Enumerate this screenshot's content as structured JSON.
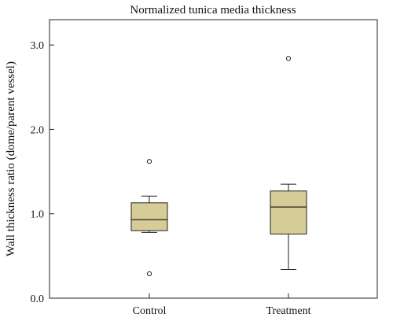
{
  "chart_data": {
    "type": "boxplot",
    "title": "Normalized tunica media thickness",
    "xlabel": "",
    "ylabel": "Wall thickness ratio (dome/parent vessel)",
    "ylim": [
      0,
      3.3
    ],
    "yticks": [
      0.0,
      1.0,
      2.0,
      3.0
    ],
    "ytick_labels": [
      "0.0",
      "1.0",
      "2.0",
      "3.0"
    ],
    "grid": false,
    "categories": [
      "Control",
      "Treatment"
    ],
    "series": [
      {
        "category": "Control",
        "whisker_low": 0.78,
        "q1": 0.8,
        "median": 0.93,
        "q3": 1.13,
        "whisker_high": 1.21,
        "outliers": [
          1.62,
          0.29
        ]
      },
      {
        "category": "Treatment",
        "whisker_low": 0.34,
        "q1": 0.76,
        "median": 1.08,
        "q3": 1.27,
        "whisker_high": 1.35,
        "outliers": [
          2.84
        ]
      }
    ],
    "colors": {
      "box_fill": "#d6cc98",
      "stroke": "#222222"
    }
  }
}
